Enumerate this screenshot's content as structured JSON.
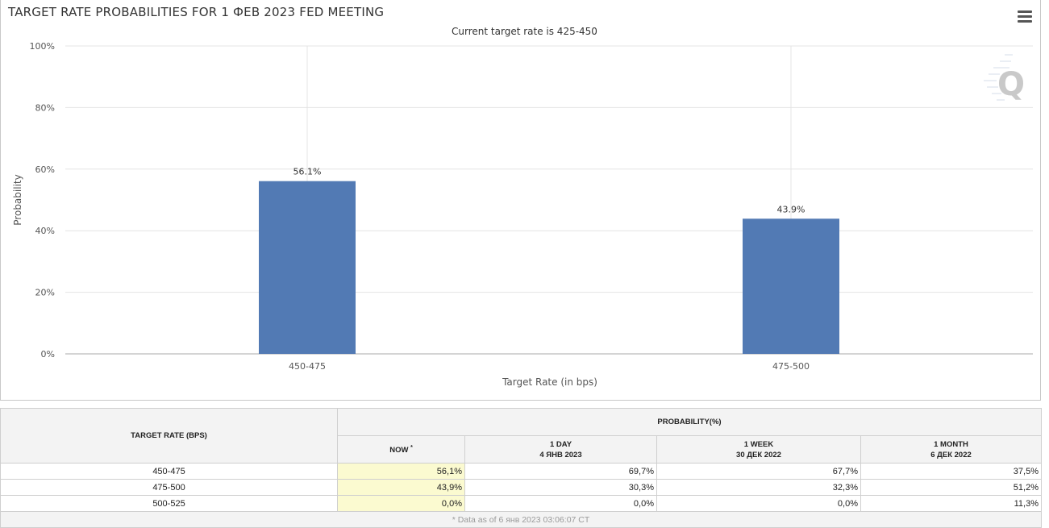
{
  "header": {
    "title": "TARGET RATE PROBABILITIES FOR 1 ФЕВ 2023 FED MEETING",
    "subtitle": "Current target rate is 425-450"
  },
  "menu_icon": "hamburger-menu-icon",
  "watermark_icon": "quikstrike-q-logo",
  "colors": {
    "bar": "#527ab4",
    "now_highlight": "#fbfad0"
  },
  "chart_data": {
    "type": "bar",
    "categories": [
      "450-475",
      "475-500"
    ],
    "values": [
      56.1,
      43.9
    ],
    "data_labels": [
      "56.1%",
      "43.9%"
    ],
    "xlabel": "Target Rate (in bps)",
    "ylabel": "Probability",
    "ylim": [
      0,
      100
    ],
    "yticks": [
      "0%",
      "20%",
      "40%",
      "60%",
      "80%",
      "100%"
    ],
    "grid": true
  },
  "table": {
    "rate_header": "TARGET RATE (BPS)",
    "prob_header": "PROBABILITY(%)",
    "columns": [
      {
        "label": "NOW",
        "marker": "*",
        "date": ""
      },
      {
        "label": "1 DAY",
        "marker": "",
        "date": "4 ЯНВ 2023"
      },
      {
        "label": "1 WEEK",
        "marker": "",
        "date": "30 ДЕК 2022"
      },
      {
        "label": "1 MONTH",
        "marker": "",
        "date": "6 ДЕК 2022"
      }
    ],
    "rows": [
      {
        "rate": "450-475",
        "values": [
          "56,1%",
          "69,7%",
          "67,7%",
          "37,5%"
        ]
      },
      {
        "rate": "475-500",
        "values": [
          "43,9%",
          "30,3%",
          "32,3%",
          "51,2%"
        ]
      },
      {
        "rate": "500-525",
        "values": [
          "0,0%",
          "0,0%",
          "0,0%",
          "11,3%"
        ]
      }
    ],
    "footer": "* Data as of 6 янв 2023 03:06:07 CT"
  }
}
